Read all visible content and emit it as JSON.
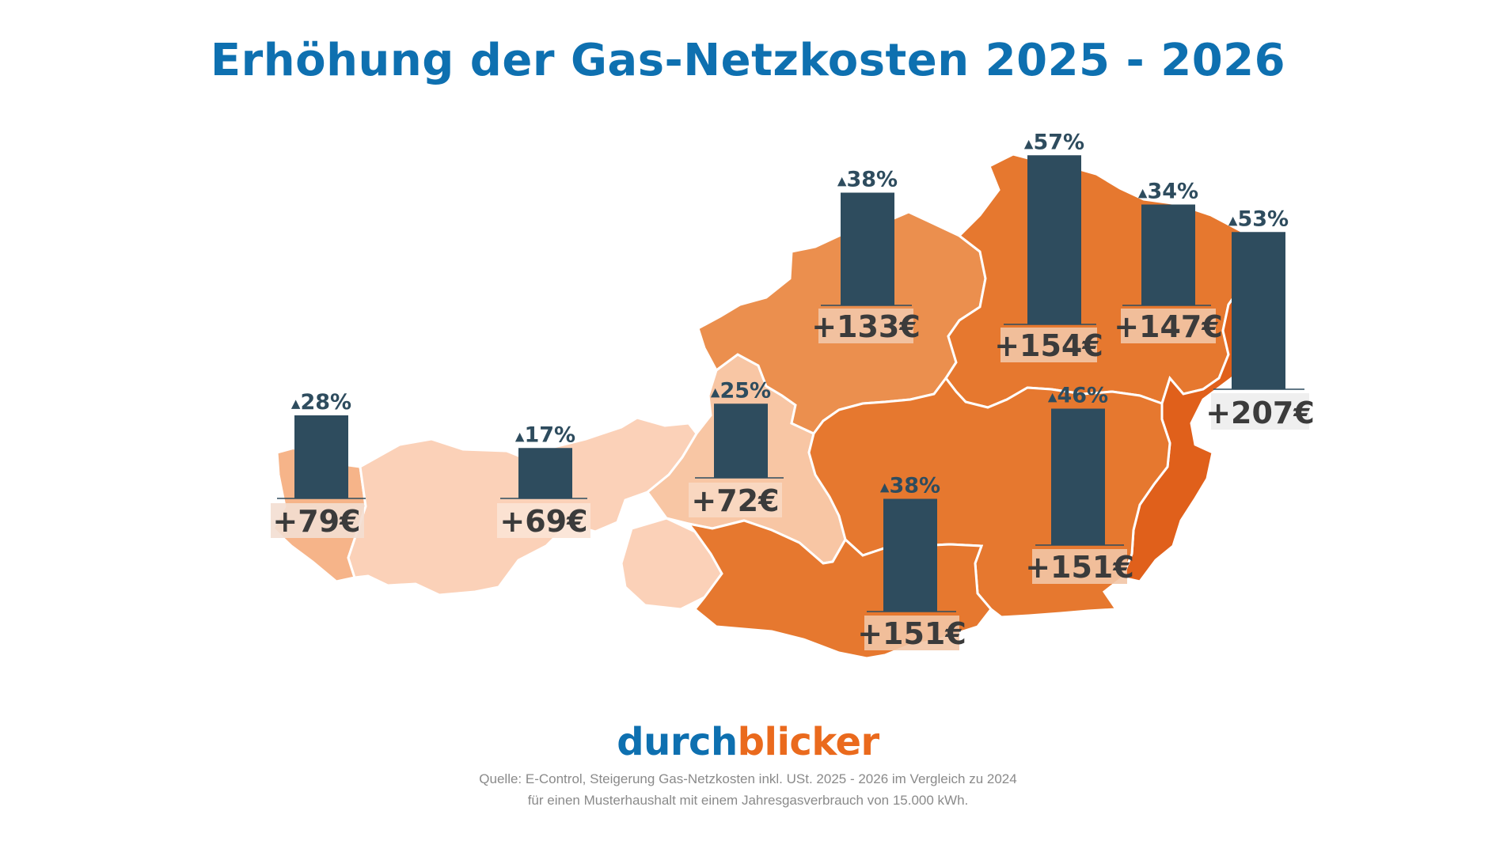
{
  "title": "Erhöhung der Gas-Netzkosten 2025 - 2026",
  "brand": {
    "part1": "durch",
    "part2": "blicker"
  },
  "source_line1": "Quelle: E-Control, Steigerung Gas-Netzkosten inkl. USt. 2025 - 2026 im Vergleich zu 2024",
  "source_line2": "für einen Musterhaushalt mit einem Jahresgasverbrauch von 15.000 kWh.",
  "colors": {
    "title": "#0e70b0",
    "brand_accent": "#ea6a1d",
    "bar": "#2e4c5e",
    "label_box": "#f2d3c0"
  },
  "regions": [
    {
      "id": "vorarlberg",
      "percent": "28%",
      "percent_value": 28,
      "amount": "+79€",
      "fill": "#f6b489"
    },
    {
      "id": "tirol",
      "percent": "17%",
      "percent_value": 17,
      "amount": "+69€",
      "fill": "#fbd1b8"
    },
    {
      "id": "salzburg",
      "percent": "25%",
      "percent_value": 25,
      "amount": "+72€",
      "fill": "#f8c6a4"
    },
    {
      "id": "oberoesterreich",
      "percent": "38%",
      "percent_value": 38,
      "amount": "+133€",
      "fill": "#eb8f4e"
    },
    {
      "id": "niederoesterreich",
      "percent": "57%",
      "percent_value": 57,
      "amount": "+154€",
      "fill": "#e6782f"
    },
    {
      "id": "wien",
      "percent": "34%",
      "percent_value": 34,
      "amount": "+147€",
      "fill": "#e6782f"
    },
    {
      "id": "burgenland",
      "percent": "53%",
      "percent_value": 53,
      "amount": "+207€",
      "fill": "#e0601b"
    },
    {
      "id": "steiermark",
      "percent": "46%",
      "percent_value": 46,
      "amount": "+151€",
      "fill": "#e6782f"
    },
    {
      "id": "kaernten",
      "percent": "38%",
      "percent_value": 38,
      "amount": "+151€",
      "fill": "#e6782f"
    }
  ]
}
